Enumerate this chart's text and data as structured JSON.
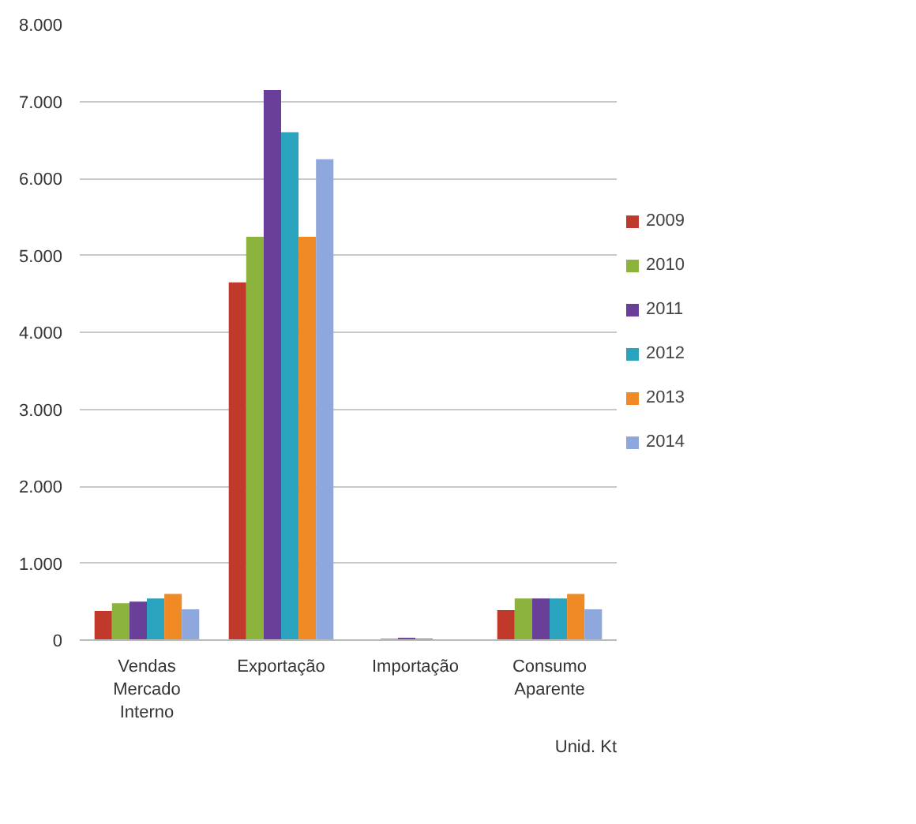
{
  "chart_data": {
    "type": "bar",
    "categories": [
      "Vendas\nMercado\nInterno",
      "Exportação",
      "Importação",
      "Consumo\nAparente"
    ],
    "series": [
      {
        "name": "2009",
        "color": "#c0392b",
        "values": [
          380,
          4650,
          null,
          390
        ]
      },
      {
        "name": "2010",
        "color": "#8cb43c",
        "values": [
          480,
          5240,
          20,
          540
        ]
      },
      {
        "name": "2011",
        "color": "#6a3f9a",
        "values": [
          500,
          7150,
          30,
          540
        ]
      },
      {
        "name": "2012",
        "color": "#2aa3bf",
        "values": [
          540,
          6600,
          20,
          540
        ]
      },
      {
        "name": "2013",
        "color": "#f08a24",
        "values": [
          600,
          5240,
          null,
          600
        ]
      },
      {
        "name": "2014",
        "color": "#8ea7dc",
        "values": [
          400,
          6250,
          10,
          400
        ]
      }
    ],
    "ylim": [
      0,
      8000
    ],
    "yticks": [
      0,
      {
        "value": 1000,
        "label": "1.000"
      },
      {
        "value": 2000,
        "label": "2.000"
      },
      {
        "value": 3000,
        "label": "3.000"
      },
      {
        "value": 4000,
        "label": "4.000"
      },
      {
        "value": 5000,
        "label": "5.000"
      },
      {
        "value": 6000,
        "label": "6.000"
      },
      {
        "value": 7000,
        "label": "7.000"
      },
      {
        "value": 8000,
        "label": "8.000"
      }
    ],
    "grid": "y",
    "legend": "right",
    "annotations": [
      "Unid. Kt"
    ]
  }
}
